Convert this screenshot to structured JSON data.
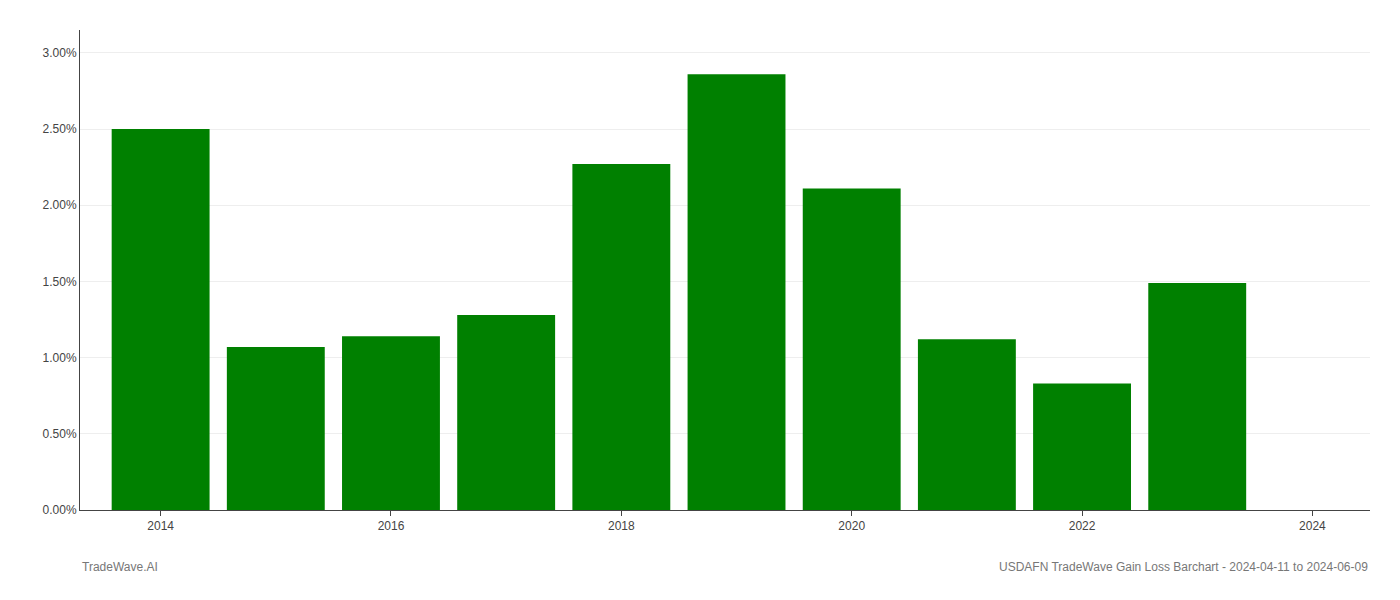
{
  "chart_data": {
    "type": "bar",
    "x": [
      2014,
      2015,
      2016,
      2017,
      2018,
      2019,
      2020,
      2021,
      2022,
      2023
    ],
    "values": [
      0.025,
      0.0107,
      0.0114,
      0.0128,
      0.0227,
      0.0286,
      0.0211,
      0.0112,
      0.0083,
      0.0149
    ],
    "color": "#008000",
    "xlim": [
      2013.3,
      2024.5
    ],
    "xticks": [
      2014,
      2016,
      2018,
      2020,
      2022,
      2024
    ],
    "ylim": [
      0.0,
      0.0315
    ],
    "yticks": [
      {
        "value": 0.0,
        "label": "0.00%"
      },
      {
        "value": 0.005,
        "label": "0.50%"
      },
      {
        "value": 0.01,
        "label": "1.00%"
      },
      {
        "value": 0.015,
        "label": "1.50%"
      },
      {
        "value": 0.02,
        "label": "2.00%"
      },
      {
        "value": 0.025,
        "label": "2.50%"
      },
      {
        "value": 0.03,
        "label": "3.00%"
      }
    ],
    "grid": true,
    "annotations": [
      "TradeWave.AI",
      "USDAFN TradeWave Gain Loss Barchart - 2024-04-11 to 2024-06-09"
    ]
  }
}
